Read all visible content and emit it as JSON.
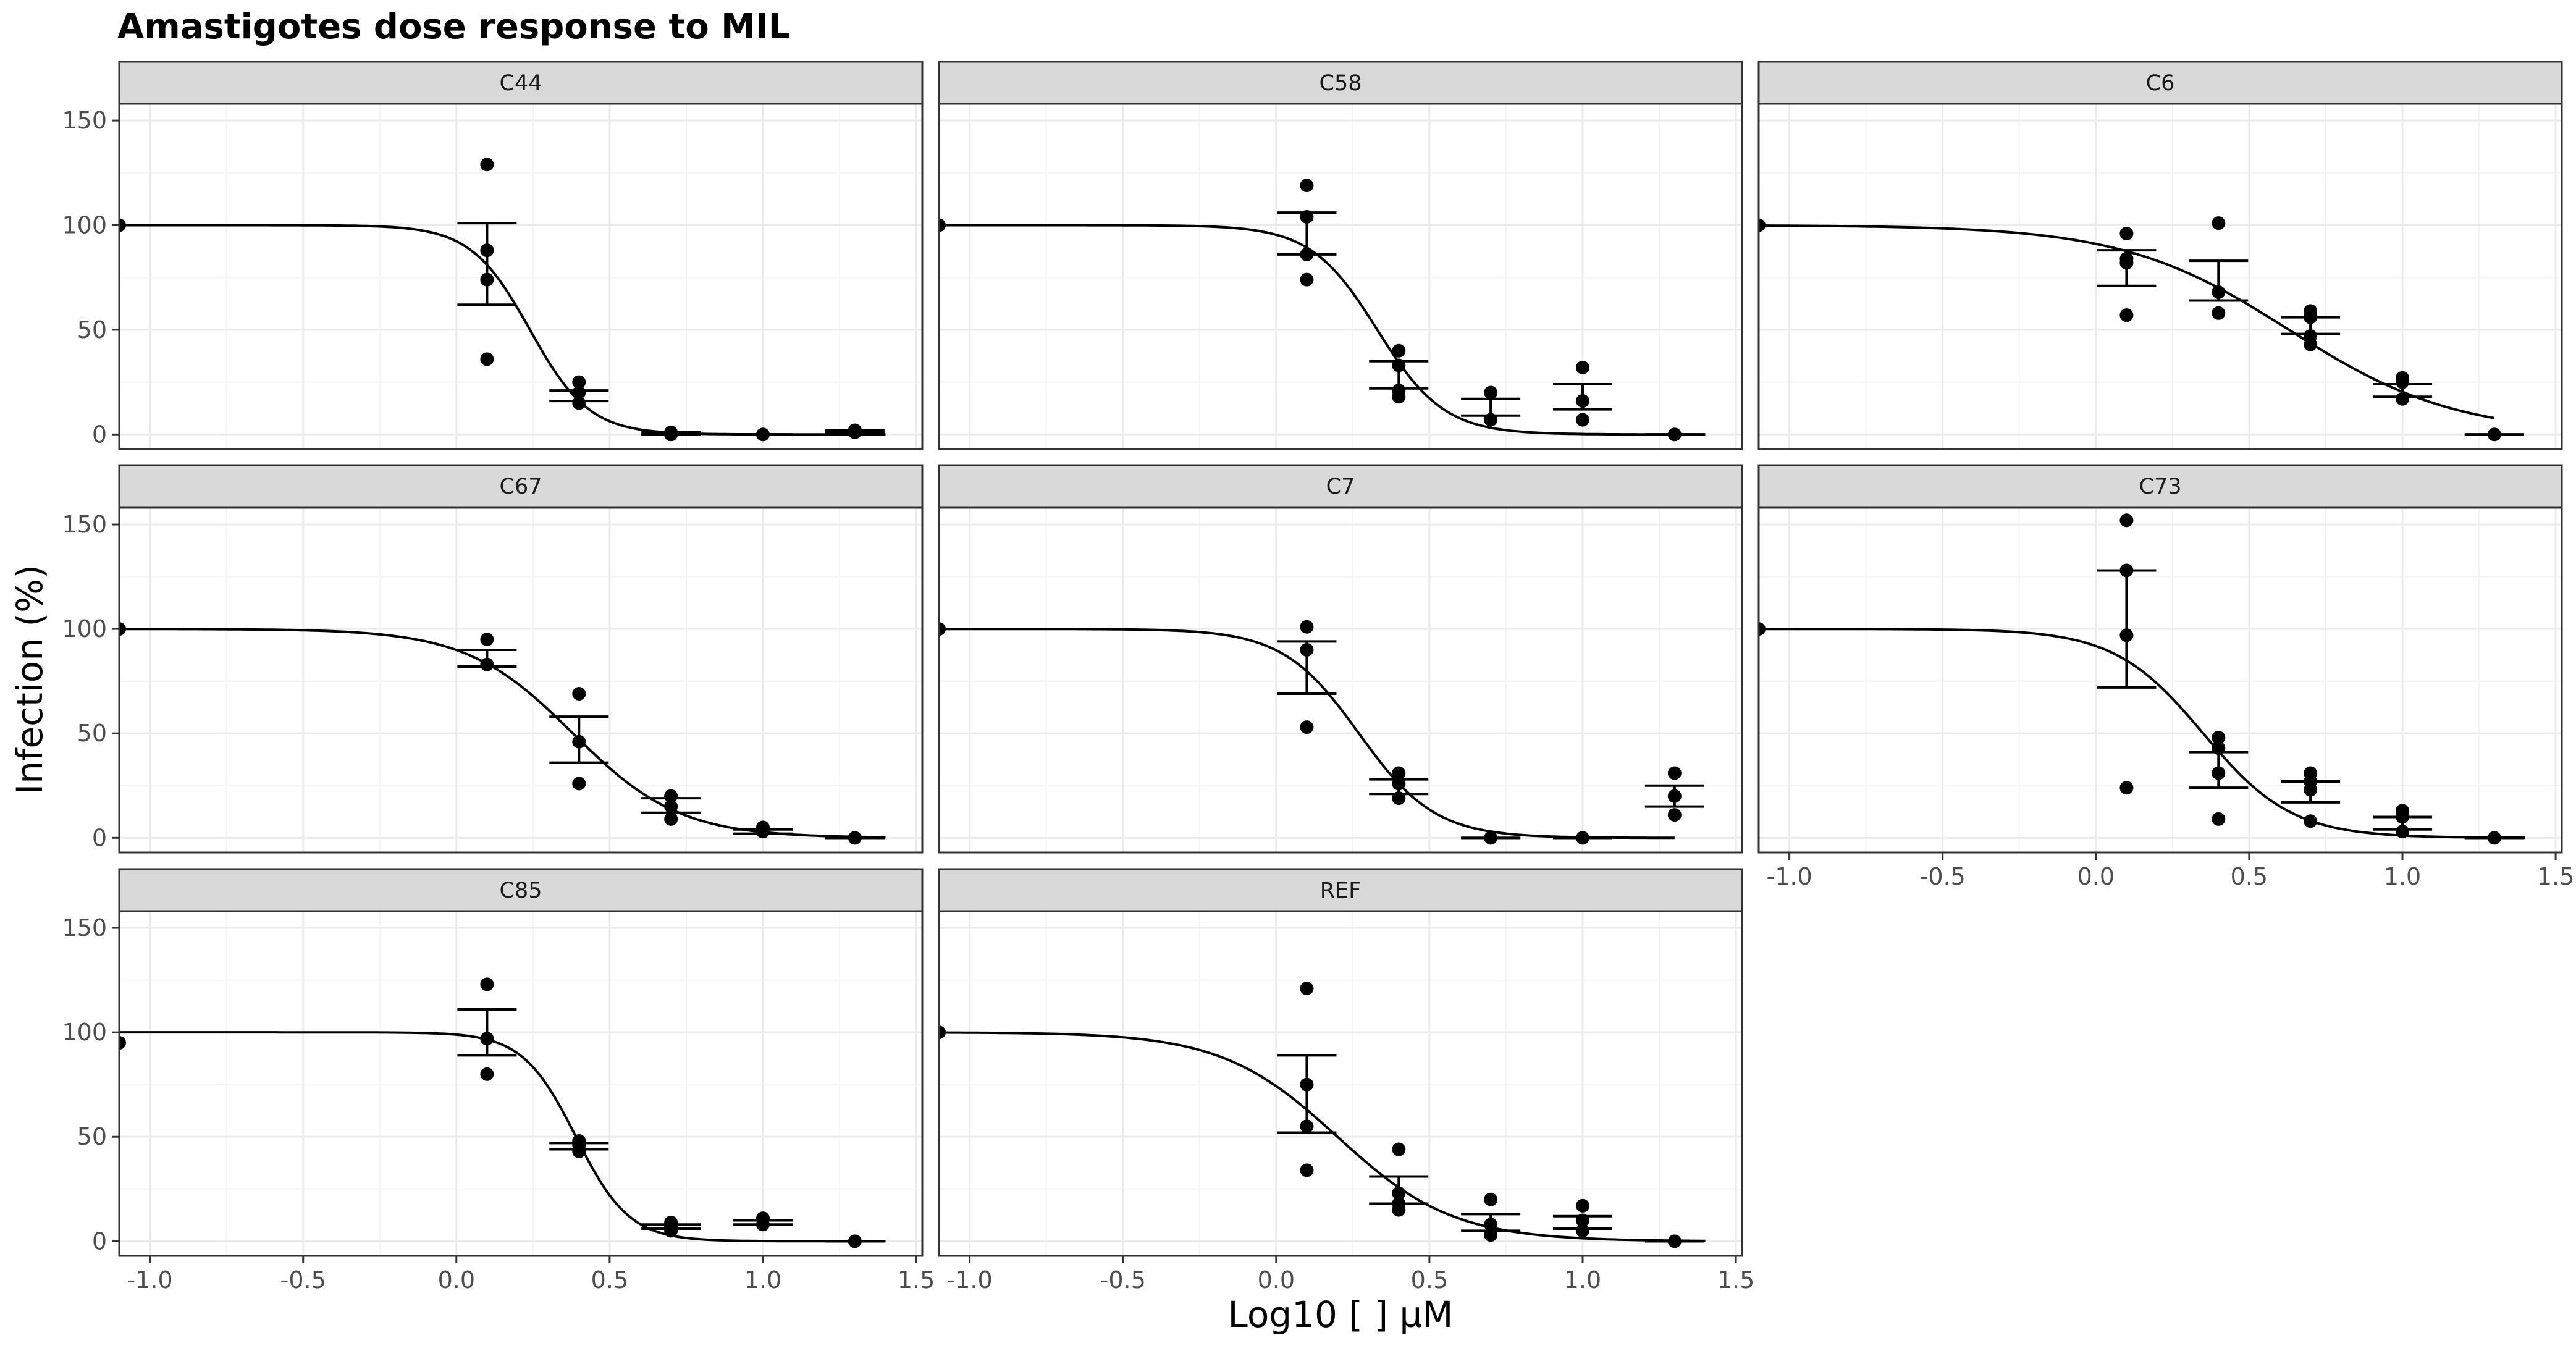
{
  "chart_data": {
    "type": "scatter",
    "title": "Amastigotes dose response to MIL",
    "xlabel": "Log10 [ ] µM",
    "ylabel": "Infection (%)",
    "xlim": [
      -1.1,
      1.52
    ],
    "ylim": [
      -7,
      158
    ],
    "x_ticks": [
      -1.0,
      -0.5,
      0.0,
      0.5,
      1.0,
      1.5
    ],
    "x_tick_labels": [
      "-1.0",
      "-0.5",
      "0.0",
      "0.5",
      "1.0",
      "1.5"
    ],
    "y_ticks": [
      0,
      50,
      100,
      150
    ],
    "y_tick_labels": [
      "0",
      "50",
      "100",
      "150"
    ],
    "grid": true,
    "layout": "facet-wrap 3 columns",
    "colors": {
      "points": "#000000",
      "curve": "#000000",
      "strip": "#d9d9d9",
      "panel_border": "#333333",
      "grid_major": "#ebebeb",
      "grid_minor": "#f4f4f4"
    },
    "panels": [
      {
        "label": "C44",
        "curve": {
          "ec50_log": 0.24,
          "hill": 4.5,
          "x_end": 1.4
        },
        "points": [
          [
            -1.1,
            100
          ],
          [
            0.1,
            129
          ],
          [
            0.1,
            88
          ],
          [
            0.1,
            74
          ],
          [
            0.1,
            36
          ],
          [
            0.4,
            25
          ],
          [
            0.4,
            20
          ],
          [
            0.4,
            15
          ],
          [
            0.7,
            1
          ],
          [
            0.7,
            0
          ],
          [
            1.0,
            0
          ],
          [
            1.3,
            2
          ],
          [
            1.3,
            1
          ]
        ],
        "errorbars": [
          [
            0.1,
            62,
            101
          ],
          [
            0.4,
            16,
            21
          ],
          [
            0.7,
            0,
            1
          ],
          [
            1.0,
            0,
            0
          ],
          [
            1.3,
            1,
            2
          ]
        ]
      },
      {
        "label": "C58",
        "curve": {
          "ec50_log": 0.33,
          "hill": 4.0,
          "x_end": 1.4
        },
        "points": [
          [
            -1.1,
            100
          ],
          [
            0.1,
            119
          ],
          [
            0.1,
            104
          ],
          [
            0.1,
            86
          ],
          [
            0.1,
            74
          ],
          [
            0.4,
            40
          ],
          [
            0.4,
            33
          ],
          [
            0.4,
            21
          ],
          [
            0.4,
            18
          ],
          [
            0.7,
            20
          ],
          [
            0.7,
            7
          ],
          [
            1.0,
            32
          ],
          [
            1.0,
            16
          ],
          [
            1.0,
            7
          ],
          [
            1.3,
            0
          ]
        ],
        "errorbars": [
          [
            0.1,
            86,
            106
          ],
          [
            0.4,
            22,
            35
          ],
          [
            0.7,
            9,
            17
          ],
          [
            1.0,
            12,
            24
          ],
          [
            1.3,
            0,
            0
          ]
        ]
      },
      {
        "label": "C6",
        "curve": {
          "ec50_log": 0.63,
          "hill": 1.6,
          "x_end": 1.3
        },
        "points": [
          [
            -1.1,
            100
          ],
          [
            0.1,
            96
          ],
          [
            0.1,
            84
          ],
          [
            0.1,
            82
          ],
          [
            0.1,
            57
          ],
          [
            0.4,
            101
          ],
          [
            0.4,
            68
          ],
          [
            0.4,
            58
          ],
          [
            0.7,
            59
          ],
          [
            0.7,
            56
          ],
          [
            0.7,
            47
          ],
          [
            0.7,
            43
          ],
          [
            1.0,
            27
          ],
          [
            1.0,
            25
          ],
          [
            1.0,
            17
          ],
          [
            1.3,
            0
          ]
        ],
        "errorbars": [
          [
            0.1,
            71,
            88
          ],
          [
            0.4,
            64,
            83
          ],
          [
            0.7,
            48,
            56
          ],
          [
            1.0,
            18,
            24
          ],
          [
            1.3,
            0,
            0
          ]
        ]
      },
      {
        "label": "C67",
        "curve": {
          "ec50_log": 0.38,
          "hill": 2.5,
          "x_end": 1.4
        },
        "points": [
          [
            -1.1,
            100
          ],
          [
            0.1,
            95
          ],
          [
            0.1,
            83
          ],
          [
            0.4,
            69
          ],
          [
            0.4,
            46
          ],
          [
            0.4,
            26
          ],
          [
            0.7,
            20
          ],
          [
            0.7,
            15
          ],
          [
            0.7,
            9
          ],
          [
            1.0,
            5
          ],
          [
            1.0,
            3
          ],
          [
            1.3,
            0
          ]
        ],
        "errorbars": [
          [
            0.1,
            82,
            90
          ],
          [
            0.4,
            36,
            58
          ],
          [
            0.7,
            12,
            19
          ],
          [
            1.0,
            2,
            4
          ],
          [
            1.3,
            0,
            0
          ]
        ]
      },
      {
        "label": "C7",
        "curve": {
          "ec50_log": 0.27,
          "hill": 3.5,
          "x_end": 1.3
        },
        "points": [
          [
            -1.1,
            100
          ],
          [
            0.1,
            101
          ],
          [
            0.1,
            90
          ],
          [
            0.1,
            53
          ],
          [
            0.4,
            31
          ],
          [
            0.4,
            26
          ],
          [
            0.4,
            19
          ],
          [
            0.7,
            0
          ],
          [
            1.0,
            0
          ],
          [
            1.3,
            31
          ],
          [
            1.3,
            20
          ],
          [
            1.3,
            11
          ]
        ],
        "errorbars": [
          [
            0.1,
            69,
            94
          ],
          [
            0.4,
            21,
            28
          ],
          [
            0.7,
            0,
            0
          ],
          [
            1.0,
            0,
            0
          ],
          [
            1.3,
            15,
            25
          ]
        ]
      },
      {
        "label": "C73",
        "curve": {
          "ec50_log": 0.35,
          "hill": 3.0,
          "x_end": 1.4
        },
        "points": [
          [
            -1.1,
            100
          ],
          [
            0.1,
            152
          ],
          [
            0.1,
            128
          ],
          [
            0.1,
            97
          ],
          [
            0.1,
            24
          ],
          [
            0.4,
            48
          ],
          [
            0.4,
            43
          ],
          [
            0.4,
            31
          ],
          [
            0.4,
            9
          ],
          [
            0.7,
            31
          ],
          [
            0.7,
            27
          ],
          [
            0.7,
            23
          ],
          [
            0.7,
            8
          ],
          [
            1.0,
            13
          ],
          [
            1.0,
            10
          ],
          [
            1.0,
            3
          ],
          [
            1.3,
            0
          ]
        ],
        "errorbars": [
          [
            0.1,
            72,
            128
          ],
          [
            0.4,
            24,
            41
          ],
          [
            0.7,
            17,
            27
          ],
          [
            1.0,
            4,
            10
          ],
          [
            1.3,
            0,
            0
          ]
        ]
      },
      {
        "label": "C85",
        "curve": {
          "ec50_log": 0.39,
          "hill": 5.0,
          "x_end": 1.4
        },
        "points": [
          [
            -1.1,
            95
          ],
          [
            0.1,
            123
          ],
          [
            0.1,
            97
          ],
          [
            0.1,
            80
          ],
          [
            0.4,
            48
          ],
          [
            0.4,
            46
          ],
          [
            0.4,
            43
          ],
          [
            0.7,
            9
          ],
          [
            0.7,
            7
          ],
          [
            0.7,
            5
          ],
          [
            1.0,
            11
          ],
          [
            1.0,
            8
          ],
          [
            1.3,
            0
          ]
        ],
        "errorbars": [
          [
            0.1,
            89,
            111
          ],
          [
            0.4,
            44,
            47
          ],
          [
            0.7,
            6,
            8
          ],
          [
            1.0,
            8,
            10
          ],
          [
            1.3,
            0,
            0
          ]
        ]
      },
      {
        "label": "REF",
        "curve": {
          "ec50_log": 0.2,
          "hill": 2.3,
          "x_end": 1.4
        },
        "points": [
          [
            -1.1,
            100
          ],
          [
            0.1,
            121
          ],
          [
            0.1,
            75
          ],
          [
            0.1,
            55
          ],
          [
            0.1,
            34
          ],
          [
            0.4,
            44
          ],
          [
            0.4,
            23
          ],
          [
            0.4,
            18
          ],
          [
            0.4,
            15
          ],
          [
            0.7,
            20
          ],
          [
            0.7,
            8
          ],
          [
            0.7,
            3
          ],
          [
            1.0,
            17
          ],
          [
            1.0,
            10
          ],
          [
            1.0,
            5
          ],
          [
            1.3,
            0
          ]
        ],
        "errorbars": [
          [
            0.1,
            52,
            89
          ],
          [
            0.4,
            18,
            31
          ],
          [
            0.7,
            5,
            13
          ],
          [
            1.0,
            6,
            12
          ],
          [
            1.3,
            0,
            0
          ]
        ]
      }
    ]
  }
}
